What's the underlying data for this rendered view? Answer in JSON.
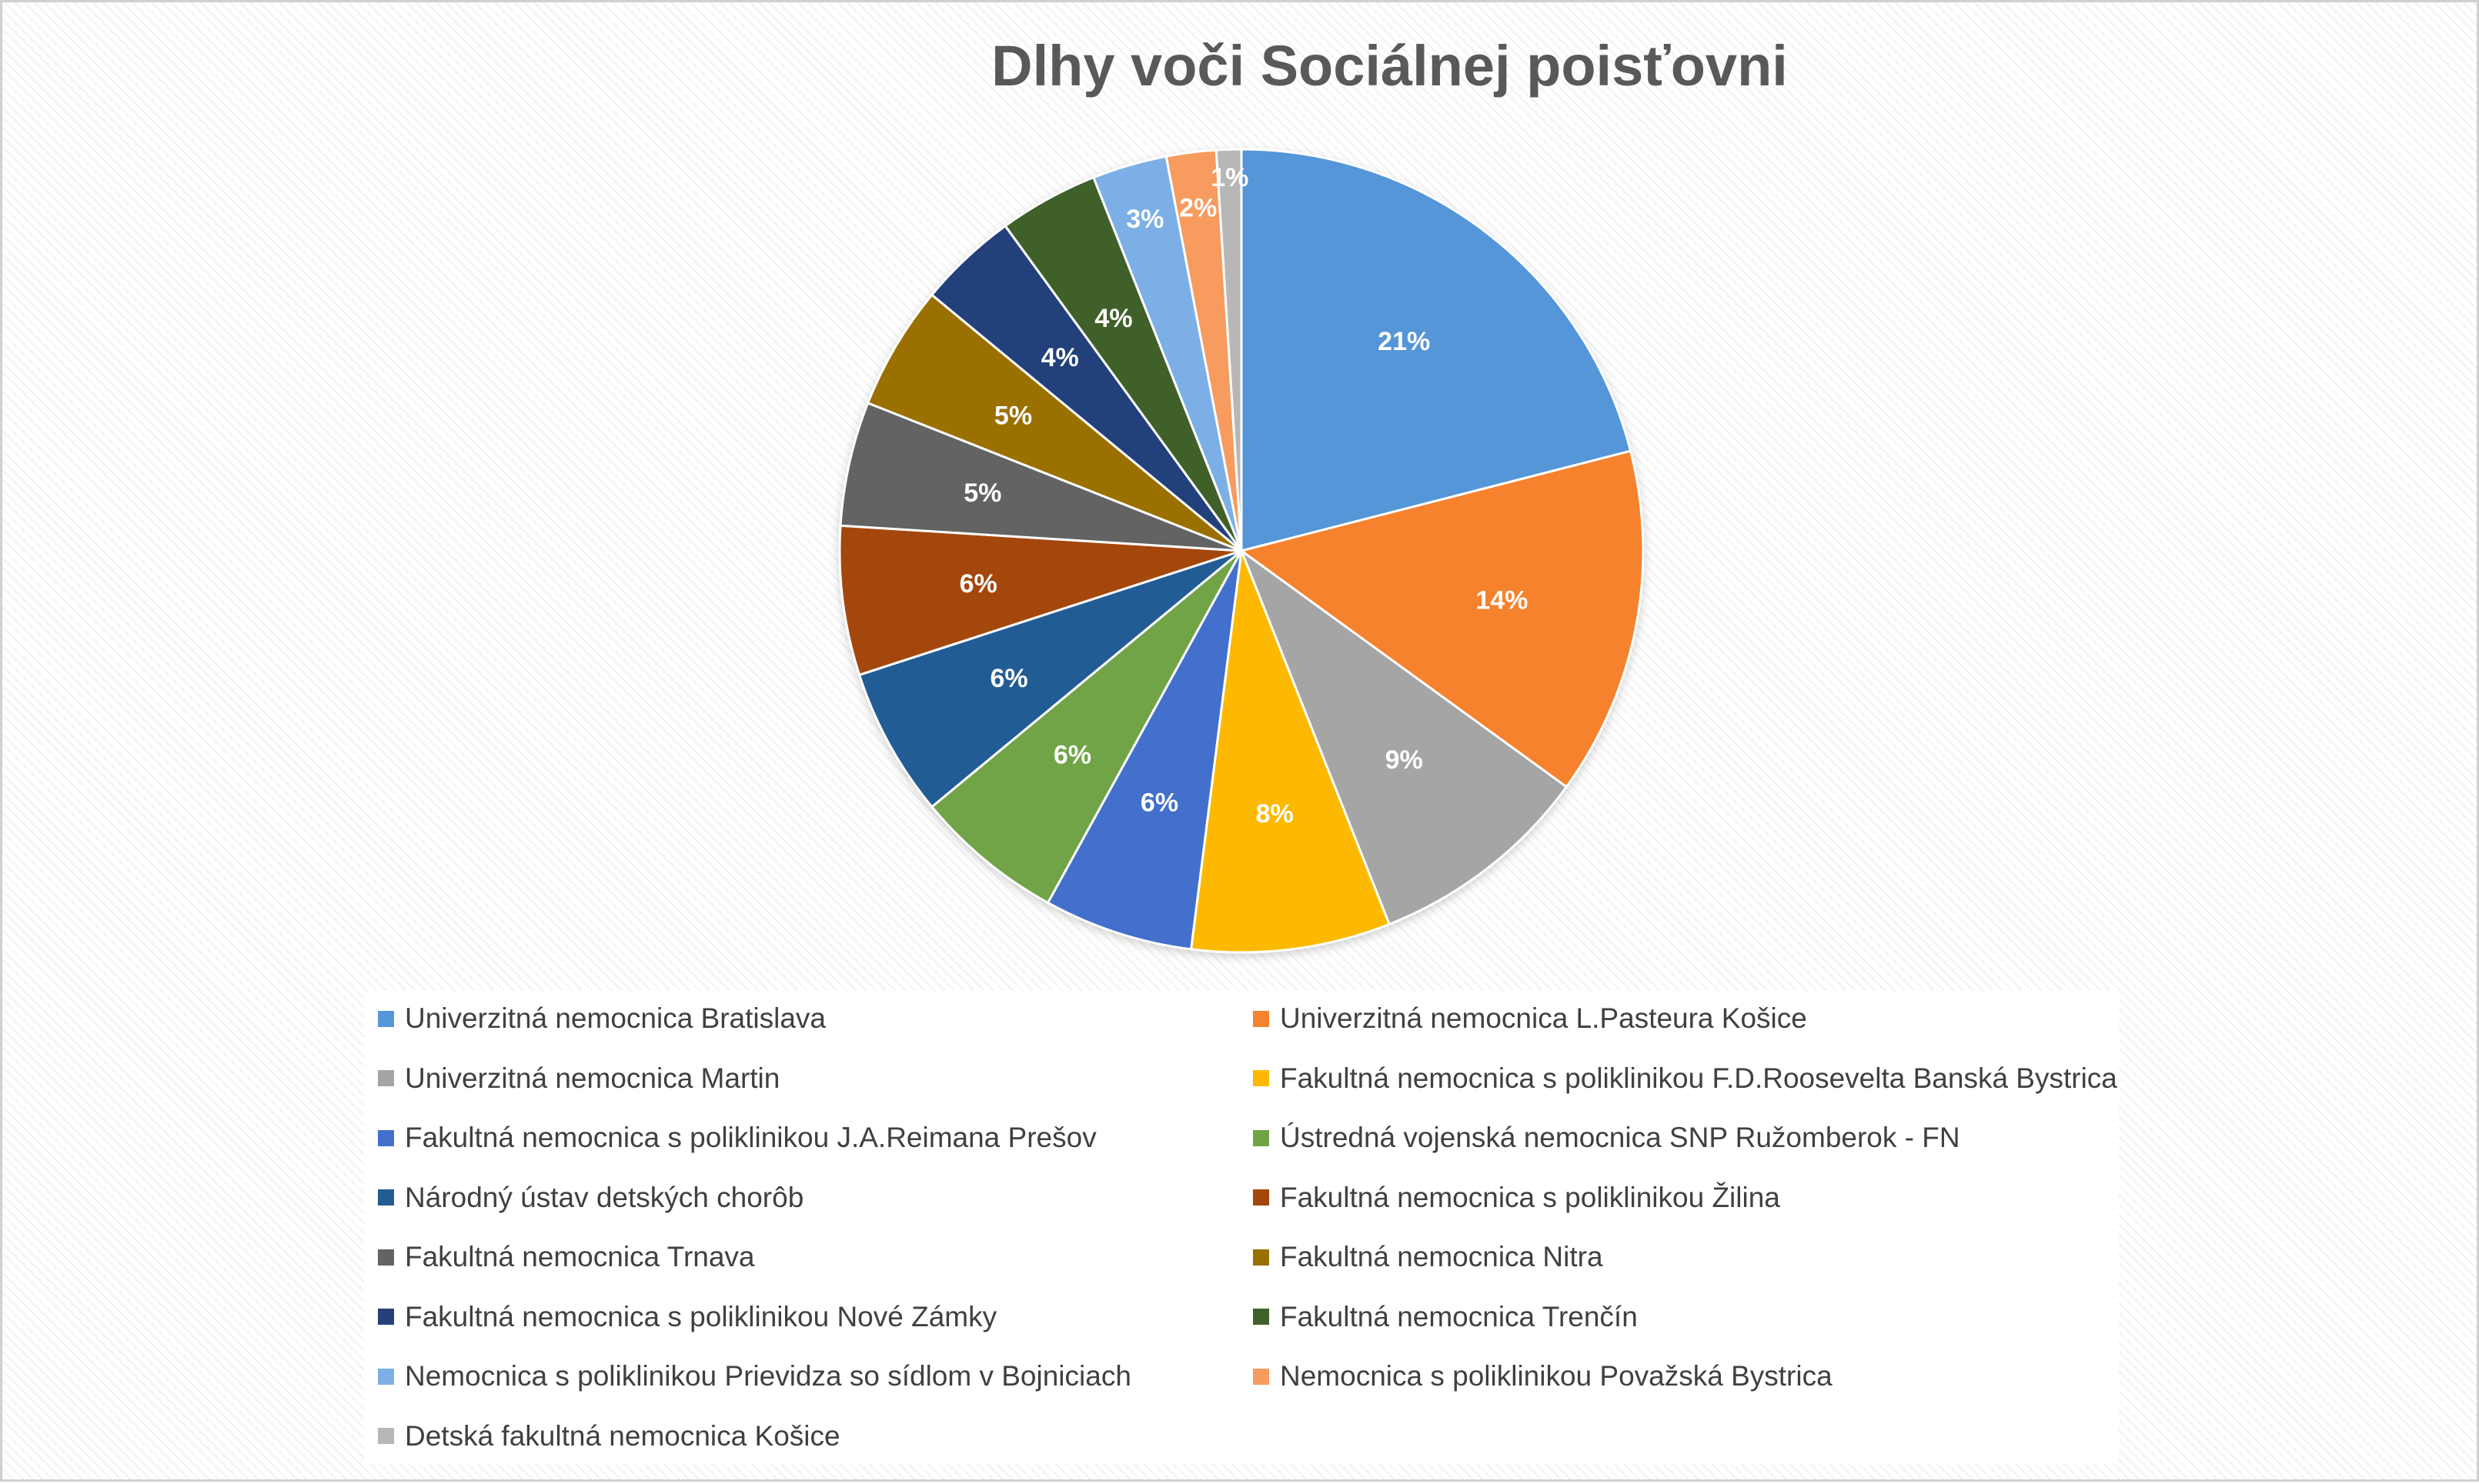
{
  "chart_data": {
    "type": "pie",
    "title": "Dlhy voči Sociálnej poisťovni",
    "legend_position": "bottom",
    "slices": [
      {
        "name": "Univerzitná nemocnica Bratislava",
        "value": 21,
        "label": "21%",
        "color": "#5596D8"
      },
      {
        "name": "Univerzitná nemocnica L.Pasteura Košice",
        "value": 14,
        "label": "14%",
        "color": "#F6822E"
      },
      {
        "name": "Univerzitná nemocnica Martin",
        "value": 9,
        "label": "9%",
        "color": "#A5A5A5"
      },
      {
        "name": "Fakultná nemocnica s poliklinikou F.D.Roosevelta Banská Bystrica",
        "value": 8,
        "label": "8%",
        "color": "#FDB900"
      },
      {
        "name": "Fakultná nemocnica s poliklinikou J.A.Reimana Prešov",
        "value": 6,
        "label": "6%",
        "color": "#4270CC"
      },
      {
        "name": "Ústredná vojenská nemocnica SNP Ružomberok - FN",
        "value": 6,
        "label": "6%",
        "color": "#6FA446"
      },
      {
        "name": "Národný ústav detských chorôb",
        "value": 6,
        "label": "6%",
        "color": "#245C94"
      },
      {
        "name": "Fakultná nemocnica s poliklinikou Žilina",
        "value": 6,
        "label": "6%",
        "color": "#A4470D"
      },
      {
        "name": "Fakultná nemocnica Trnava",
        "value": 5,
        "label": "5%",
        "color": "#636363"
      },
      {
        "name": "Fakultná nemocnica Nitra",
        "value": 5,
        "label": "5%",
        "color": "#9A7000"
      },
      {
        "name": "Fakultná nemocnica s poliklinikou Nové Zámky",
        "value": 4,
        "label": "4%",
        "color": "#24417A"
      },
      {
        "name": "Fakultná nemocnica Trenčín",
        "value": 4,
        "label": "4%",
        "color": "#3F612C"
      },
      {
        "name": "Nemocnica s poliklinikou Prievidza so sídlom v Bojniciach",
        "value": 3,
        "label": "3%",
        "color": "#7BAFE6"
      },
      {
        "name": "Nemocnica s poliklinikou Považská Bystrica",
        "value": 2,
        "label": "2%",
        "color": "#F79B5E"
      },
      {
        "name": "Detská fakultná nemocnica Košice",
        "value": 1,
        "label": "1%",
        "color": "#B7B7B7"
      }
    ]
  }
}
